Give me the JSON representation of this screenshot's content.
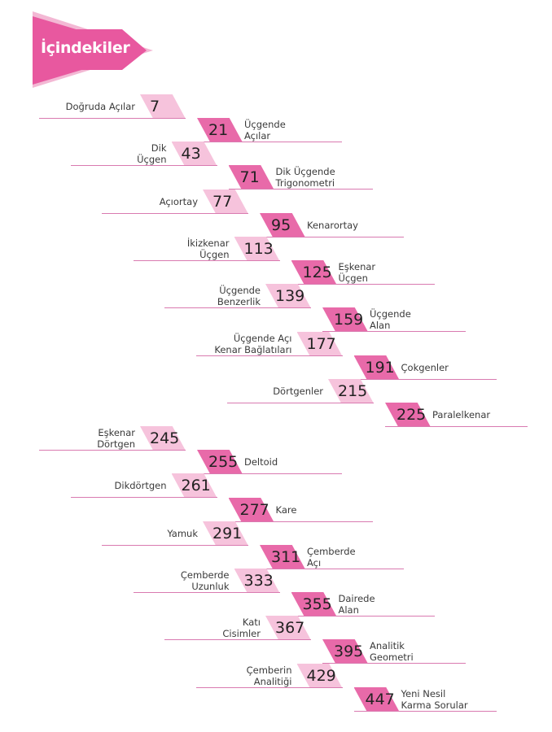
{
  "page_title": "İçindekiler",
  "colors": {
    "accent": "#e8589f",
    "accent_light": "#f6c3dc",
    "accent_dark": "#e86aa9",
    "rule": "#d97ab0",
    "text": "#3a3a3a"
  },
  "entries": [
    {
      "side": "left",
      "lines": [
        "Doğruda Açılar"
      ],
      "page": "7"
    },
    {
      "side": "right",
      "lines": [
        "Üçgende",
        "Açılar"
      ],
      "page": "21"
    },
    {
      "side": "left",
      "lines": [
        "Dik",
        "Üçgen"
      ],
      "page": "43"
    },
    {
      "side": "right",
      "lines": [
        "Dik Üçgende",
        "Trigonometri"
      ],
      "page": "71"
    },
    {
      "side": "left",
      "lines": [
        "Açıortay"
      ],
      "page": "77"
    },
    {
      "side": "right",
      "lines": [
        "Kenarortay"
      ],
      "page": "95"
    },
    {
      "side": "left",
      "lines": [
        "İkizkenar",
        "Üçgen"
      ],
      "page": "113"
    },
    {
      "side": "right",
      "lines": [
        "Eşkenar",
        "Üçgen"
      ],
      "page": "125"
    },
    {
      "side": "left",
      "lines": [
        "Üçgende",
        "Benzerlik"
      ],
      "page": "139"
    },
    {
      "side": "right",
      "lines": [
        "Üçgende",
        "Alan"
      ],
      "page": "159"
    },
    {
      "side": "left",
      "lines": [
        "Üçgende Açı",
        "Kenar Bağlatıları"
      ],
      "page": "177"
    },
    {
      "side": "right",
      "lines": [
        "Çokgenler"
      ],
      "page": "191"
    },
    {
      "side": "left",
      "lines": [
        "Dörtgenler"
      ],
      "page": "215"
    },
    {
      "side": "right",
      "lines": [
        "Paralelkenar"
      ],
      "page": "225"
    },
    {
      "side": "left",
      "lines": [
        "Eşkenar",
        "Dörtgen"
      ],
      "page": "245"
    },
    {
      "side": "right",
      "lines": [
        "Deltoid"
      ],
      "page": "255"
    },
    {
      "side": "left",
      "lines": [
        "Dikdörtgen"
      ],
      "page": "261"
    },
    {
      "side": "right",
      "lines": [
        "Kare"
      ],
      "page": "277"
    },
    {
      "side": "left",
      "lines": [
        "Yamuk"
      ],
      "page": "291"
    },
    {
      "side": "right",
      "lines": [
        "Çemberde",
        "Açı"
      ],
      "page": "311"
    },
    {
      "side": "left",
      "lines": [
        "Çemberde",
        "Uzunluk"
      ],
      "page": "333"
    },
    {
      "side": "right",
      "lines": [
        "Dairede",
        "Alan"
      ],
      "page": "355"
    },
    {
      "side": "left",
      "lines": [
        "Katı",
        "Cisimler"
      ],
      "page": "367"
    },
    {
      "side": "right",
      "lines": [
        "Analitik",
        "Geometri"
      ],
      "page": "395"
    },
    {
      "side": "left",
      "lines": [
        "Çemberin",
        "Analitiği"
      ],
      "page": "429"
    },
    {
      "side": "right",
      "lines": [
        "Yeni Nesil",
        "Karma Sorular"
      ],
      "page": "447"
    }
  ]
}
